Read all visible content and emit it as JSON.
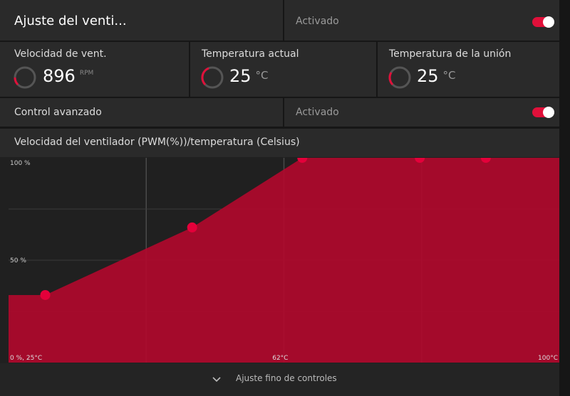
{
  "header": {
    "title": "Ajuste del venti...",
    "status": "Activado"
  },
  "stats": [
    {
      "label": "Velocidad de vent.",
      "value": 896,
      "unit": "RPM"
    },
    {
      "label": "Temperatura actual",
      "value": 25,
      "unit": "°C"
    },
    {
      "label": "Temperatura de la unión",
      "value": 25,
      "unit": "°C"
    }
  ],
  "advanced": {
    "label": "Control avanzado",
    "status": "Activado"
  },
  "chart_data": {
    "type": "area",
    "title": "Velocidad del ventilador (PWM(%))/temperatura (Celsius)",
    "x": [
      30,
      50,
      65,
      81,
      90
    ],
    "values": [
      33,
      66,
      100,
      100,
      100
    ],
    "color": "#b0092c",
    "marker_color": "#e4003a",
    "xlim": [
      25,
      100
    ],
    "ylim": [
      0,
      100
    ],
    "xticks": [
      {
        "value": 25,
        "label": "0 %, 25°C"
      },
      {
        "value": 62,
        "label": "62°C"
      },
      {
        "value": 100,
        "label": "100°C"
      }
    ],
    "yticks": [
      {
        "value": 100,
        "label": "100 %"
      },
      {
        "value": 50,
        "label": "50 %"
      }
    ],
    "grid": true
  },
  "footer": {
    "label": "Ajuste fino de controles"
  }
}
